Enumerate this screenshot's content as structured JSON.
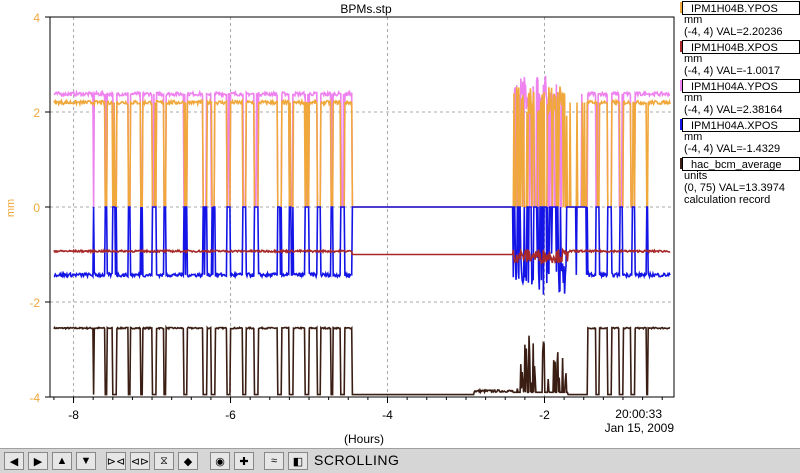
{
  "chart_data": {
    "type": "line",
    "title": "BPMs.stp",
    "xlabel": "(Hours)",
    "ylabel": "mm",
    "xlim": [
      -8.3,
      -0.35
    ],
    "ylim": [
      -4,
      4
    ],
    "x_ticks": [
      -8,
      -6,
      -4,
      -2
    ],
    "y_ticks": [
      -4,
      -2,
      0,
      2,
      4
    ],
    "grid": true,
    "current_time": "20:00:33",
    "current_date": "Jan 15, 2009",
    "series": [
      {
        "name": "IPM1H04B.YPOS",
        "color": "#f0a83c",
        "base": 2.2,
        "low": 0.0,
        "units": "mm",
        "range": "(-4, 4) VAL=2.20236"
      },
      {
        "name": "IPM1H04B.XPOS",
        "color": "#a8282a",
        "base": -0.93,
        "low": -1.0,
        "units": "mm",
        "range": "(-4, 4) VAL=-1.0017"
      },
      {
        "name": "IPM1H04A.YPOS",
        "color": "#ee82ee",
        "base": 2.38,
        "low": 0.0,
        "units": "mm",
        "range": "(-4, 4) VAL=2.38164"
      },
      {
        "name": "IPM1H04A.XPOS",
        "color": "#1414e6",
        "base": -1.43,
        "low": 0.0,
        "units": "mm",
        "range": "(-4, 4) VAL=-1.4329"
      },
      {
        "name": "hac_bcm_average",
        "color": "#3a1e14",
        "base": -2.55,
        "low": -3.95,
        "units": "units",
        "range": "(0, 75) VAL=13.3974",
        "extra": "calculation record"
      }
    ],
    "beam_on_intervals": [
      [
        -8.25,
        -7.75
      ],
      [
        -7.74,
        -7.6
      ],
      [
        -7.57,
        -7.5
      ],
      [
        -7.45,
        -7.3
      ],
      [
        -7.28,
        -7.15
      ],
      [
        -7.12,
        -7.0
      ],
      [
        -6.95,
        -6.85
      ],
      [
        -6.82,
        -6.6
      ],
      [
        -6.55,
        -6.35
      ],
      [
        -6.3,
        -6.25
      ],
      [
        -6.2,
        -6.05
      ],
      [
        -6.0,
        -5.85
      ],
      [
        -5.8,
        -5.7
      ],
      [
        -5.65,
        -5.4
      ],
      [
        -5.35,
        -5.25
      ],
      [
        -5.2,
        -5.05
      ],
      [
        -5.0,
        -4.9
      ],
      [
        -4.85,
        -4.72
      ],
      [
        -4.7,
        -4.6
      ],
      [
        -4.55,
        -4.45
      ],
      [
        -2.2,
        -2.1
      ],
      [
        -1.45,
        -1.35
      ],
      [
        -1.3,
        -1.2
      ],
      [
        -1.15,
        -1.05
      ],
      [
        -1.0,
        -0.9
      ],
      [
        -0.85,
        -0.7
      ],
      [
        -0.68,
        -0.38
      ]
    ],
    "off_period": [
      -4.45,
      -2.4
    ],
    "noisy_period": [
      -2.4,
      -1.7
    ]
  },
  "toolbar": {
    "status": "SCROLLING",
    "buttons": [
      "arrow-left-icon",
      "arrow-right-icon",
      "arrow-up-icon",
      "arrow-down-icon",
      "zoom-in-horizontal-icon",
      "zoom-out-horizontal-icon",
      "zoom-in-vertical-icon",
      "zoom-out-vertical-icon",
      "record-icon",
      "crosshair-icon",
      "autoscale-icon",
      "scroll-mode-icon"
    ]
  }
}
